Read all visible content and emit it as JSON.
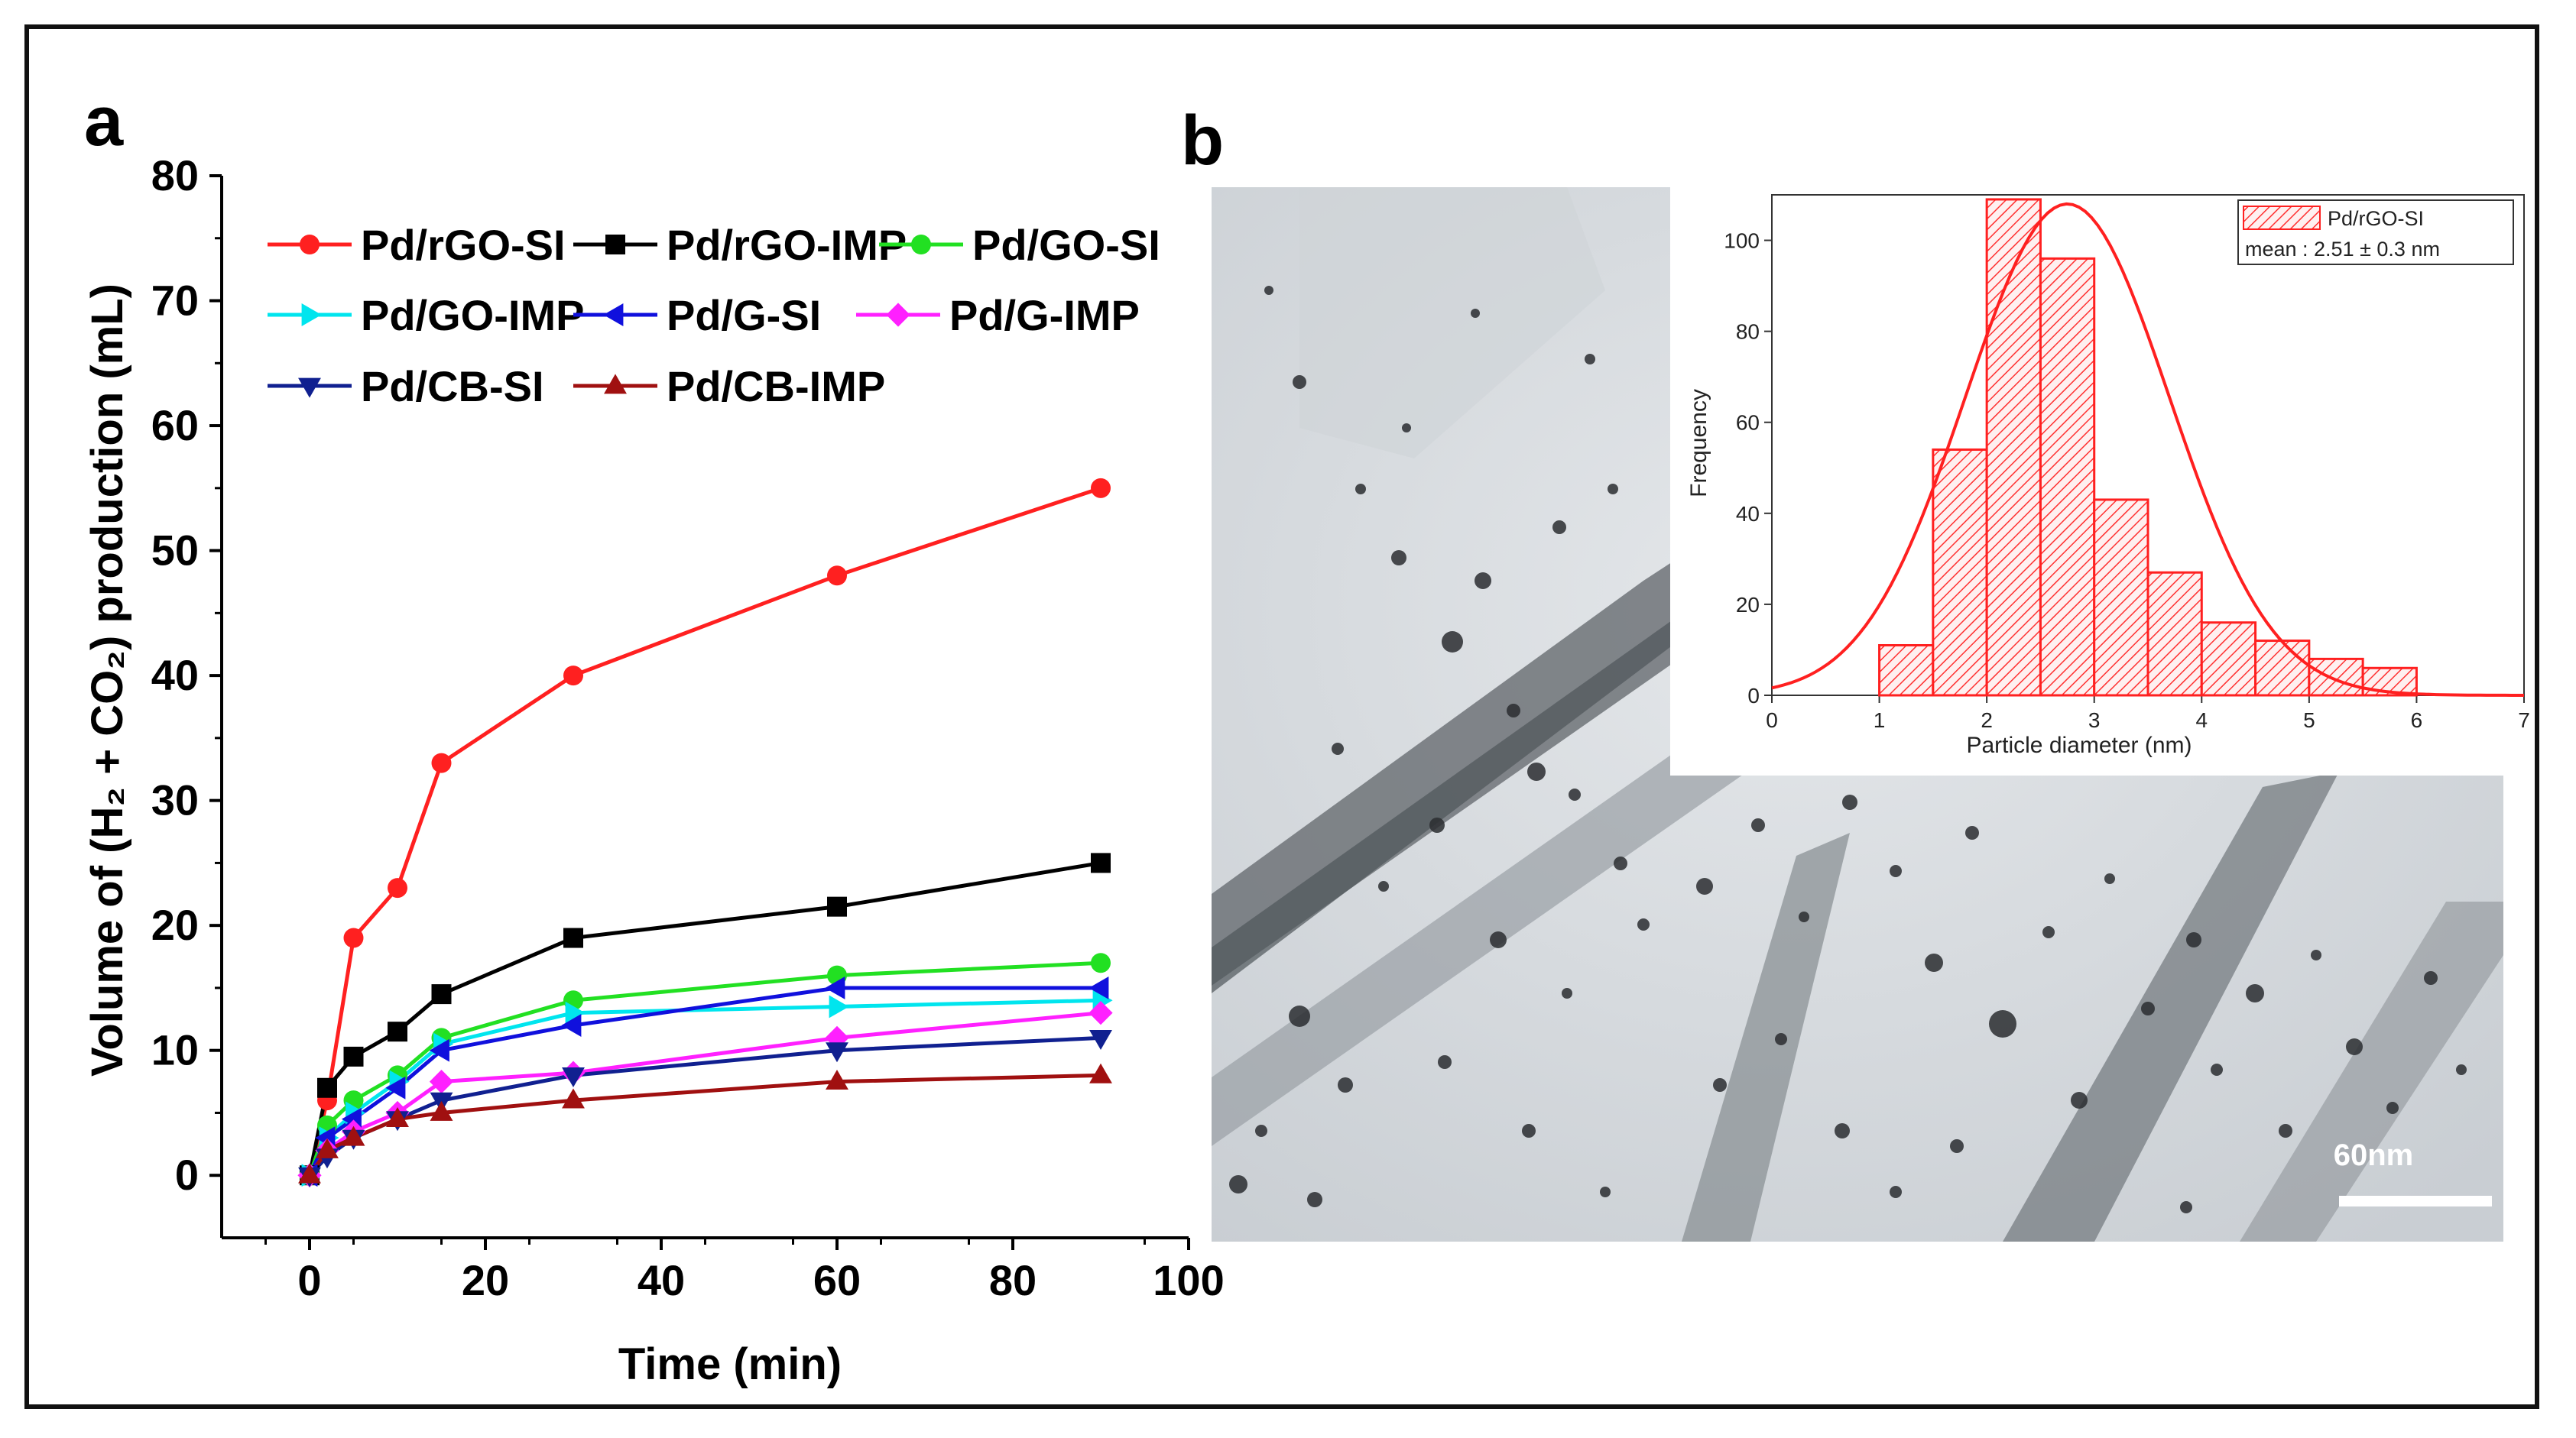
{
  "chart_data": [
    {
      "panel": "a",
      "type": "line",
      "xlabel": "Time (min)",
      "ylabel": "Volume of (H₂ + CO₂) production (mL)",
      "xlim": [
        -10,
        100
      ],
      "ylim": [
        -5,
        80
      ],
      "xticks": [
        0,
        20,
        40,
        60,
        80,
        100
      ],
      "yticks": [
        0,
        10,
        20,
        30,
        40,
        50,
        60,
        70,
        80
      ],
      "x": [
        0,
        2,
        5,
        10,
        15,
        30,
        60,
        90
      ],
      "series": [
        {
          "name": "Pd/rGO-SI",
          "color": "#ff2020",
          "marker": "circle",
          "values": [
            0,
            6,
            19,
            23,
            33,
            40,
            48,
            55
          ]
        },
        {
          "name": "Pd/rGO-IMP",
          "color": "#000000",
          "marker": "square",
          "values": [
            0,
            7,
            9.5,
            11.5,
            14.5,
            19,
            21.5,
            25
          ]
        },
        {
          "name": "Pd/GO-SI",
          "color": "#22e022",
          "marker": "circle",
          "values": [
            0,
            4,
            6,
            8,
            11,
            14,
            16,
            17
          ]
        },
        {
          "name": "Pd/GO-IMP",
          "color": "#00e5ee",
          "marker": "triangle-right",
          "values": [
            0,
            3,
            5,
            7.5,
            10.5,
            13,
            13.5,
            14
          ]
        },
        {
          "name": "Pd/G-SI",
          "color": "#1010dd",
          "marker": "triangle-left",
          "values": [
            0,
            3,
            4.5,
            7,
            10,
            12,
            15,
            15
          ]
        },
        {
          "name": "Pd/G-IMP",
          "color": "#ff20ff",
          "marker": "diamond",
          "values": [
            0,
            2,
            3.5,
            5,
            7.5,
            8.2,
            11,
            13
          ]
        },
        {
          "name": "Pd/CB-SI",
          "color": "#102090",
          "marker": "triangle-down",
          "values": [
            0,
            1.5,
            3,
            4.5,
            6,
            8,
            10,
            11
          ]
        },
        {
          "name": "Pd/CB-IMP",
          "color": "#a01010",
          "marker": "triangle-up",
          "values": [
            0,
            2,
            3,
            4.5,
            5,
            6,
            7.5,
            8
          ]
        }
      ]
    },
    {
      "panel": "b-inset",
      "type": "bar",
      "xlabel": "Particle diameter (nm)",
      "ylabel": "Frequency",
      "xlim": [
        0,
        7
      ],
      "ylim": [
        0,
        110
      ],
      "xticks": [
        0,
        1,
        2,
        3,
        4,
        5,
        6,
        7
      ],
      "yticks": [
        0,
        20,
        40,
        60,
        80,
        100
      ],
      "bin_edges": [
        1,
        1.5,
        2,
        2.5,
        3,
        3.5,
        4,
        4.5,
        5,
        5.5,
        6
      ],
      "values": [
        11,
        54,
        109,
        96,
        43,
        27,
        16,
        12,
        8,
        6
      ],
      "fit": {
        "type": "gaussian",
        "peak": 108,
        "center": 2.75,
        "sigma": 0.95
      },
      "legend": {
        "series": "Pd/rGO-SI",
        "note": "mean : 2.51 ± 0.3 nm"
      }
    }
  ],
  "panel_labels": {
    "a": "a",
    "b": "b"
  },
  "micrograph": {
    "scale_bar": "60nm"
  }
}
